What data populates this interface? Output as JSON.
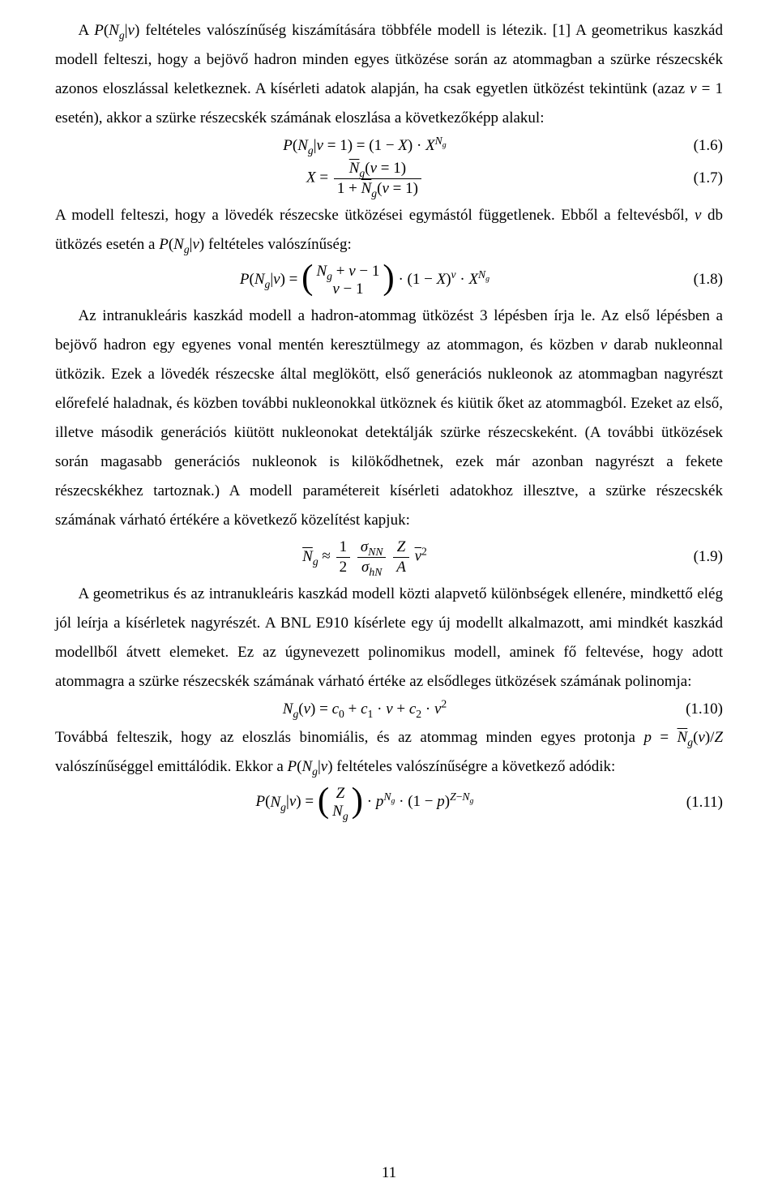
{
  "colors": {
    "background": "#ffffff",
    "text": "#000000"
  },
  "typography": {
    "font_family": "Times New Roman",
    "body_fontsize_pt": 12,
    "line_spacing": 1.9
  },
  "page_number": "11",
  "para1": "A P(Nₘ|ν) feltételes valószínűség kiszámítására többféle modell is létezik. [1] A geometrikus kaszkád modell felteszi, hogy a bejövő hadron minden egyes ütközése során az atommagban a szürke részecskék azonos eloszlással keletkeznek. A kísérleti adatok alapján, ha csak egyetlen ütközést tekintünk (azaz ν = 1 esetén), akkor a szürke részecskék számának eloszlása a következőképp alakul:",
  "eq1_6": {
    "label": "(1.6)",
    "lhs": "P(Nₘ|ν = 1) = (1 − X) · X",
    "exp": "Nₘ"
  },
  "eq1_7": {
    "label": "(1.7)",
    "lhs_var": "X =",
    "num": "N̄ₘ(ν = 1)",
    "den": "1 + N̄ₘ(ν = 1)"
  },
  "para2": "A modell felteszi, hogy a lövedék részecske ütközései egymástól függetlenek. Ebből a feltevésből, ν db ütközés esetén a P(Nₘ|ν) feltételes valószínűség:",
  "eq1_8": {
    "label": "(1.8)",
    "lhs": "P(Nₘ|ν) =",
    "binom_top": "Nₘ + ν − 1",
    "binom_bot": "ν − 1",
    "rhs_a": "· (1 − X)",
    "exp1": "ν",
    "rhs_b": " · X",
    "exp2": "Nₘ"
  },
  "para3": "Az intranukleáris kaszkád modell a hadron-atommag ütközést 3 lépésben írja le. Az első lépésben a bejövő hadron egy egyenes vonal mentén keresztülmegy az atommagon, és közben ν darab nukleonnal ütközik. Ezek a lövedék részecske által meglökött, első generációs nukleonok az atommagban nagyrészt előrefelé haladnak, és közben további nukleonokkal ütköznek és kiütik őket az atommagból. Ezeket az első, illetve második generációs kiütött nukleonokat detektálják szürke részecskeként. (A további ütközések során magasabb generációs nukleonok is kilökődhetnek, ezek már azonban nagyrészt a fekete részecskékhez tartoznak.) A modell paramétereit kísérleti adatokhoz illesztve, a szürke részecskék számának várható értékére a következő közelítést kapjuk:",
  "eq1_9": {
    "label": "(1.9)",
    "lhs": "N̄ₘ ≈",
    "f1_num": "1",
    "f1_den": "2",
    "f2_num": "σNN",
    "f2_den": "σhN",
    "f3_num": "Z",
    "f3_den": "A",
    "tail": "ν̄",
    "tail_exp": "2"
  },
  "para4": "A geometrikus és az intranukleáris kaszkád modell közti alapvető különbségek ellenére, mindkettő elég jól leírja a kísérletek nagyrészét. A BNL E910 kísérlete egy új modellt alkalmazott, ami mindkét kaszkád modellből átvett elemeket. Ez az úgynevezett polinomikus modell, aminek fő feltevése, hogy adott atommagra a szürke részecskék számának várható értéke az elsődleges ütközések számának polinomja:",
  "eq1_10": {
    "label": "(1.10)",
    "body": "Nₘ(ν) = c₀ + c₁ · ν + c₂ · ν",
    "exp": "2"
  },
  "para5": "Továbbá felteszik, hogy az eloszlás binomiális, és az atommag minden egyes protonja p = N̄ₘ(ν)/Z valószínűséggel emittálódik. Ekkor a P(Nₘ|ν) feltételes valószínűségre a következő adódik:",
  "eq1_11": {
    "label": "(1.11)",
    "lhs": "P(Nₘ|ν) =",
    "binom_top": "Z",
    "binom_bot": "Nₘ",
    "mid_a": "· p",
    "exp1": "Nₘ",
    "mid_b": " · (1 − p)",
    "exp2": "Z−Nₘ"
  }
}
